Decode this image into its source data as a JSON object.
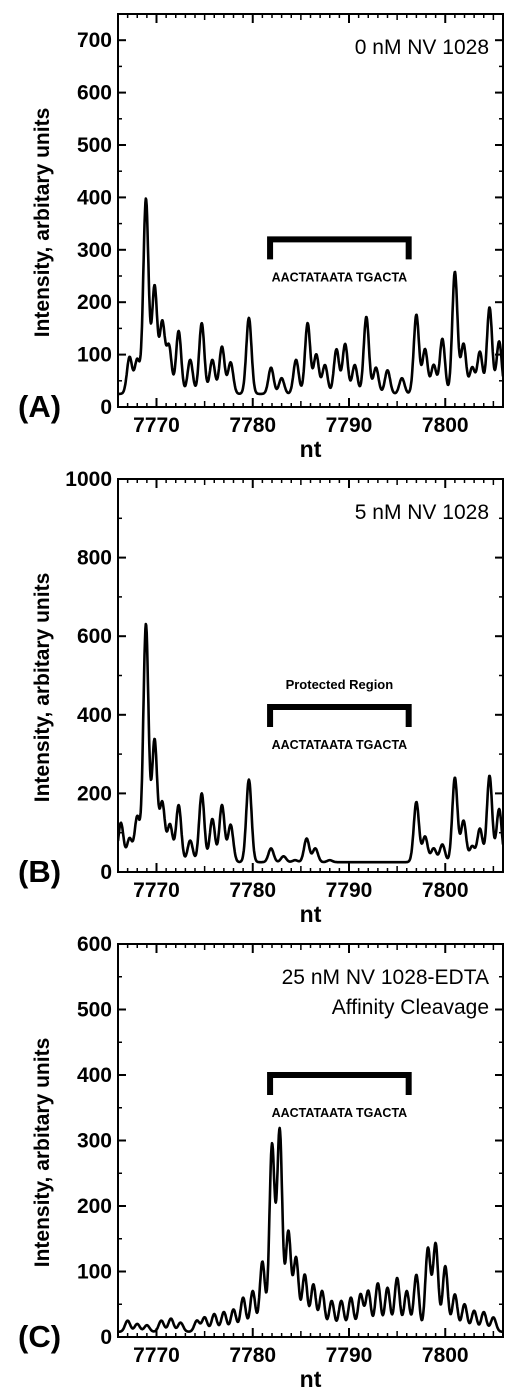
{
  "chart_data": [
    {
      "type": "line",
      "panel_label": "(A)",
      "annotation": [
        "0 nM NV 1028"
      ],
      "xlabel": "nt",
      "ylabel": "Intensity, arbitary units",
      "xlim": [
        7766,
        7806
      ],
      "ylim": [
        0,
        750
      ],
      "xticks": [
        7770,
        7780,
        7790,
        7800
      ],
      "yticks": [
        0,
        100,
        200,
        300,
        400,
        500,
        600,
        700
      ],
      "region": {
        "x": [
          7781.8,
          7796.2
        ],
        "y": 320,
        "sequence": "AACTATAATA TGACTA",
        "label": ""
      },
      "peaks": [
        {
          "x": 7767.2,
          "y": 95
        },
        {
          "x": 7768.0,
          "y": 90
        },
        {
          "x": 7768.9,
          "y": 397
        },
        {
          "x": 7769.8,
          "y": 230
        },
        {
          "x": 7770.6,
          "y": 160
        },
        {
          "x": 7771.3,
          "y": 115
        },
        {
          "x": 7772.3,
          "y": 145
        },
        {
          "x": 7773.5,
          "y": 90
        },
        {
          "x": 7774.7,
          "y": 160
        },
        {
          "x": 7775.8,
          "y": 90
        },
        {
          "x": 7776.8,
          "y": 115
        },
        {
          "x": 7777.7,
          "y": 85
        },
        {
          "x": 7779.6,
          "y": 170
        },
        {
          "x": 7781.9,
          "y": 75
        },
        {
          "x": 7783.0,
          "y": 55
        },
        {
          "x": 7784.5,
          "y": 90
        },
        {
          "x": 7785.7,
          "y": 160
        },
        {
          "x": 7786.6,
          "y": 100
        },
        {
          "x": 7787.5,
          "y": 80
        },
        {
          "x": 7788.7,
          "y": 110
        },
        {
          "x": 7789.6,
          "y": 120
        },
        {
          "x": 7790.6,
          "y": 80
        },
        {
          "x": 7791.8,
          "y": 172
        },
        {
          "x": 7792.8,
          "y": 75
        },
        {
          "x": 7794.0,
          "y": 70
        },
        {
          "x": 7795.5,
          "y": 55
        },
        {
          "x": 7797.0,
          "y": 176
        },
        {
          "x": 7797.9,
          "y": 110
        },
        {
          "x": 7798.8,
          "y": 80
        },
        {
          "x": 7799.7,
          "y": 130
        },
        {
          "x": 7801.0,
          "y": 258
        },
        {
          "x": 7801.9,
          "y": 120
        },
        {
          "x": 7802.8,
          "y": 75
        },
        {
          "x": 7803.6,
          "y": 105
        },
        {
          "x": 7804.6,
          "y": 190
        },
        {
          "x": 7805.6,
          "y": 125
        }
      ]
    },
    {
      "type": "line",
      "panel_label": "(B)",
      "annotation": [
        "5 nM NV 1028"
      ],
      "xlabel": "nt",
      "ylabel": "Intensity, arbitary units",
      "xlim": [
        7766,
        7806
      ],
      "ylim": [
        0,
        1000
      ],
      "xticks": [
        7770,
        7780,
        7790,
        7800
      ],
      "yticks": [
        0,
        200,
        400,
        600,
        800,
        1000
      ],
      "region": {
        "x": [
          7781.8,
          7796.2
        ],
        "y": 420,
        "sequence": "AACTATAATA TGACTA",
        "label": "Protected Region"
      },
      "peaks": [
        {
          "x": 7766.3,
          "y": 125
        },
        {
          "x": 7767.2,
          "y": 85
        },
        {
          "x": 7768.0,
          "y": 140
        },
        {
          "x": 7768.9,
          "y": 630
        },
        {
          "x": 7769.8,
          "y": 335
        },
        {
          "x": 7770.6,
          "y": 175
        },
        {
          "x": 7771.4,
          "y": 120
        },
        {
          "x": 7772.3,
          "y": 170
        },
        {
          "x": 7773.5,
          "y": 80
        },
        {
          "x": 7774.7,
          "y": 200
        },
        {
          "x": 7775.8,
          "y": 135
        },
        {
          "x": 7776.8,
          "y": 170
        },
        {
          "x": 7777.7,
          "y": 120
        },
        {
          "x": 7779.6,
          "y": 235
        },
        {
          "x": 7781.9,
          "y": 60
        },
        {
          "x": 7783.2,
          "y": 40
        },
        {
          "x": 7784.4,
          "y": 30
        },
        {
          "x": 7785.6,
          "y": 85
        },
        {
          "x": 7786.5,
          "y": 60
        },
        {
          "x": 7788.0,
          "y": 30
        },
        {
          "x": 7790.0,
          "y": 25
        },
        {
          "x": 7792.0,
          "y": 25
        },
        {
          "x": 7794.0,
          "y": 25
        },
        {
          "x": 7795.7,
          "y": 25
        },
        {
          "x": 7797.0,
          "y": 178
        },
        {
          "x": 7797.9,
          "y": 90
        },
        {
          "x": 7798.8,
          "y": 60
        },
        {
          "x": 7799.7,
          "y": 70
        },
        {
          "x": 7801.0,
          "y": 240
        },
        {
          "x": 7801.9,
          "y": 130
        },
        {
          "x": 7802.8,
          "y": 65
        },
        {
          "x": 7803.6,
          "y": 110
        },
        {
          "x": 7804.6,
          "y": 245
        },
        {
          "x": 7805.6,
          "y": 160
        }
      ]
    },
    {
      "type": "line",
      "panel_label": "(C)",
      "annotation": [
        "25 nM NV 1028-EDTA",
        "Affinity Cleavage"
      ],
      "xlabel": "nt",
      "ylabel": "Intensity, arbitary units",
      "xlim": [
        7766,
        7806
      ],
      "ylim": [
        0,
        600
      ],
      "xticks": [
        7770,
        7780,
        7790,
        7800
      ],
      "yticks": [
        0,
        100,
        200,
        300,
        400,
        500,
        600
      ],
      "region": {
        "x": [
          7781.8,
          7796.2
        ],
        "y": 400,
        "sequence": "AACTATAATA TGACTA",
        "label": ""
      },
      "peaks": [
        {
          "x": 7767.0,
          "y": 25
        },
        {
          "x": 7768.0,
          "y": 20
        },
        {
          "x": 7769.0,
          "y": 18
        },
        {
          "x": 7770.5,
          "y": 25
        },
        {
          "x": 7771.5,
          "y": 28
        },
        {
          "x": 7772.5,
          "y": 22
        },
        {
          "x": 7774.2,
          "y": 25
        },
        {
          "x": 7775.0,
          "y": 30
        },
        {
          "x": 7776.0,
          "y": 35
        },
        {
          "x": 7777.0,
          "y": 38
        },
        {
          "x": 7778.0,
          "y": 42
        },
        {
          "x": 7779.0,
          "y": 60
        },
        {
          "x": 7780.0,
          "y": 70
        },
        {
          "x": 7781.0,
          "y": 115
        },
        {
          "x": 7782.0,
          "y": 292
        },
        {
          "x": 7782.8,
          "y": 315
        },
        {
          "x": 7783.7,
          "y": 160
        },
        {
          "x": 7784.5,
          "y": 120
        },
        {
          "x": 7785.4,
          "y": 95
        },
        {
          "x": 7786.3,
          "y": 80
        },
        {
          "x": 7787.2,
          "y": 70
        },
        {
          "x": 7788.2,
          "y": 55
        },
        {
          "x": 7789.2,
          "y": 55
        },
        {
          "x": 7790.2,
          "y": 60
        },
        {
          "x": 7791.2,
          "y": 65
        },
        {
          "x": 7792.0,
          "y": 70
        },
        {
          "x": 7793.0,
          "y": 82
        },
        {
          "x": 7794.0,
          "y": 75
        },
        {
          "x": 7795.0,
          "y": 90
        },
        {
          "x": 7796.0,
          "y": 70
        },
        {
          "x": 7797.0,
          "y": 95
        },
        {
          "x": 7798.2,
          "y": 135
        },
        {
          "x": 7799.0,
          "y": 142
        },
        {
          "x": 7800.0,
          "y": 108
        },
        {
          "x": 7801.0,
          "y": 65
        },
        {
          "x": 7802.0,
          "y": 50
        },
        {
          "x": 7803.0,
          "y": 40
        },
        {
          "x": 7804.0,
          "y": 38
        },
        {
          "x": 7805.0,
          "y": 30
        }
      ]
    }
  ]
}
